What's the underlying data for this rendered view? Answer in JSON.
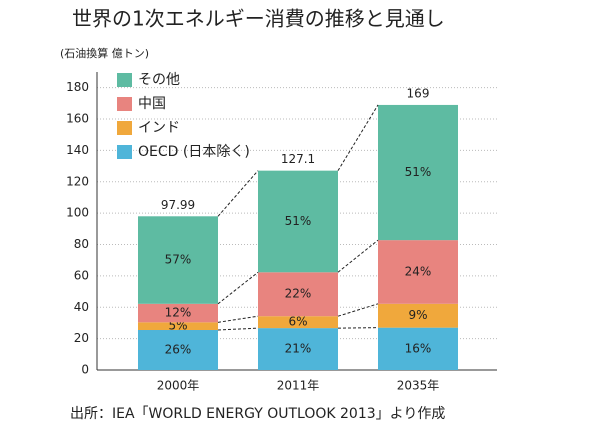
{
  "chart_data": {
    "type": "stacked_bar",
    "title": "世界の1次エネルギー消費の推移と見通し",
    "y_unit_label": "(石油換算 億トン)",
    "source": "出所：IEA「WORLD ENERGY OUTLOOK 2013」より作成",
    "categories": [
      "2000年",
      "2011年",
      "2035年"
    ],
    "series": [
      {
        "name": "OECD (日本除く)",
        "color": "#4fb5d9",
        "values": [
          25.5,
          26.7,
          27
        ],
        "share_labels": [
          "26%",
          "21%",
          "16%"
        ]
      },
      {
        "name": "インド",
        "color": "#f0a83c",
        "values": [
          4.9,
          7.6,
          15.2
        ],
        "share_labels": [
          "5%",
          "6%",
          "9%"
        ]
      },
      {
        "name": "中国",
        "color": "#e8847f",
        "values": [
          11.8,
          28.0,
          40.6
        ],
        "share_labels": [
          "12%",
          "22%",
          "24%"
        ]
      },
      {
        "name": "その他",
        "color": "#5ebba2",
        "values": [
          55.8,
          64.8,
          86.2
        ],
        "share_labels": [
          "57%",
          "51%",
          "51%"
        ]
      }
    ],
    "totals": [
      97.99,
      127.1,
      169
    ],
    "ylim": [
      0,
      190
    ],
    "yticks": [
      0,
      20,
      40,
      60,
      80,
      100,
      120,
      140,
      160,
      180
    ],
    "grid": true,
    "legend": "upper-left"
  }
}
